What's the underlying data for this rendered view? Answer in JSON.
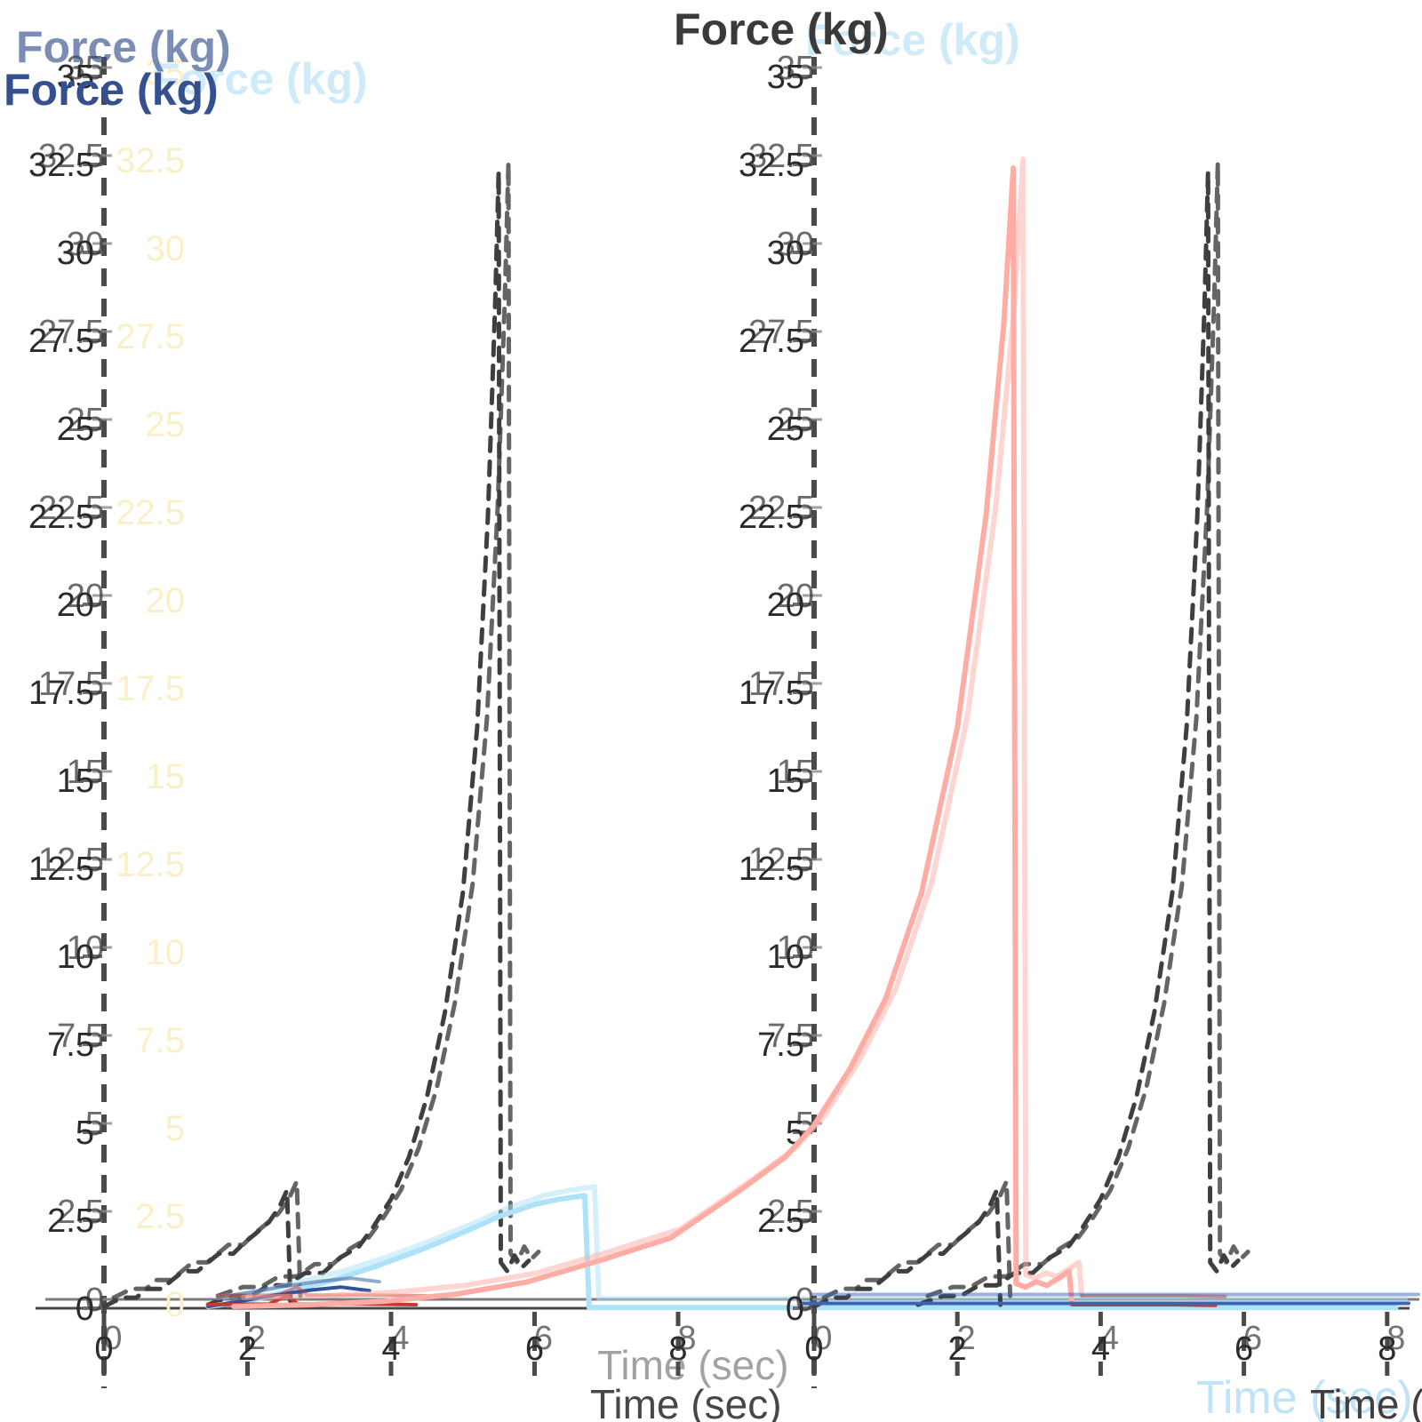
{
  "figure": {
    "background": "#ffffff",
    "ghosting_note": "double-exposed frame",
    "colors": {
      "dashed_target": "#3f3f3f",
      "cyan_trace": "#aee2f8",
      "salmon_trace": "#ffaca4",
      "navy_trace": "#2c53a0",
      "dark_red_trace": "#c23a31",
      "blue_trace": "#3c64b4",
      "axis_line": "#4a4a4a",
      "tick_text": "#2b2b2b",
      "title_blue": "#35508f",
      "title_dark": "#3a3a3a",
      "ghost_yellow": "#faf0c8",
      "ghost_blue": "#cfeaf8",
      "xlabel_dark": "#474747"
    }
  },
  "chart_data": [
    {
      "type": "line",
      "panel": "left",
      "y_axis_title": "Force (kg)",
      "x_axis_title": "Time (sec)",
      "xlim": [
        0,
        9.15
      ],
      "ylim": [
        0,
        35.2
      ],
      "grid": "dashed zero-line and tick stubs, no fill grid",
      "legend": "none",
      "xticks": {
        "values": [
          0,
          2,
          4,
          6,
          8
        ],
        "labels": [
          "0",
          "2",
          "4",
          "6",
          "8"
        ]
      },
      "yticks": {
        "values": [
          0,
          2.5,
          5,
          7.5,
          10,
          12.5,
          15,
          17.5,
          20,
          22.5,
          25,
          27.5,
          30,
          32.5,
          35
        ],
        "labels": [
          "0",
          "2.5",
          "5",
          "7.5",
          "10",
          "12.5",
          "15",
          "17.5",
          "20",
          "22.5",
          "25",
          "27.5",
          "30",
          "32.5",
          "35"
        ]
      },
      "series": [
        {
          "name": "target-ramp-short",
          "color": "#3f3f3f",
          "dash": true,
          "width": 5,
          "points": [
            [
              0,
              0.05
            ],
            [
              0.25,
              0.3
            ],
            [
              0.45,
              0.3
            ],
            [
              0.6,
              0.55
            ],
            [
              0.8,
              0.55
            ],
            [
              0.95,
              0.8
            ],
            [
              1.1,
              1.05
            ],
            [
              1.3,
              1.05
            ],
            [
              1.45,
              1.3
            ],
            [
              1.6,
              1.55
            ],
            [
              1.8,
              1.55
            ],
            [
              1.95,
              1.85
            ],
            [
              2.1,
              2.1
            ],
            [
              2.3,
              2.45
            ],
            [
              2.45,
              2.9
            ],
            [
              2.55,
              3.35
            ],
            [
              2.6,
              0.1
            ]
          ]
        },
        {
          "name": "target-ramp-tall",
          "color": "#3f3f3f",
          "dash": true,
          "width": 5,
          "points": [
            [
              1.45,
              0.1
            ],
            [
              1.8,
              0.35
            ],
            [
              2.05,
              0.35
            ],
            [
              2.3,
              0.65
            ],
            [
              2.55,
              0.65
            ],
            [
              2.8,
              1.0
            ],
            [
              3.05,
              1.0
            ],
            [
              3.3,
              1.45
            ],
            [
              3.55,
              1.75
            ],
            [
              3.75,
              2.3
            ],
            [
              4.0,
              3.1
            ],
            [
              4.25,
              4.3
            ],
            [
              4.5,
              6.0
            ],
            [
              4.75,
              8.4
            ],
            [
              5.0,
              11.8
            ],
            [
              5.2,
              16.5
            ],
            [
              5.35,
              22.5
            ],
            [
              5.45,
              28.5
            ],
            [
              5.5,
              32.3
            ],
            [
              5.53,
              1.3
            ],
            [
              5.62,
              1.05
            ],
            [
              5.72,
              1.5
            ],
            [
              5.82,
              1.15
            ],
            [
              5.92,
              1.35
            ]
          ]
        },
        {
          "name": "cyan-force-trace",
          "color": "#aee2f8",
          "dash": false,
          "width": 6,
          "points": [
            [
              1.45,
              0.05
            ],
            [
              2.0,
              0.2
            ],
            [
              2.6,
              0.5
            ],
            [
              3.2,
              0.8
            ],
            [
              3.8,
              1.2
            ],
            [
              4.4,
              1.65
            ],
            [
              5.0,
              2.15
            ],
            [
              5.5,
              2.6
            ],
            [
              6.0,
              2.95
            ],
            [
              6.35,
              3.1
            ],
            [
              6.7,
              3.2
            ],
            [
              6.76,
              0.02
            ],
            [
              18,
              0.02
            ]
          ]
        },
        {
          "name": "navy-trace",
          "color": "#2c53a0",
          "dash": false,
          "width": 4,
          "points": [
            [
              1.45,
              0.05
            ],
            [
              1.9,
              0.2
            ],
            [
              2.4,
              0.38
            ],
            [
              2.9,
              0.52
            ],
            [
              3.3,
              0.6
            ],
            [
              3.7,
              0.5
            ]
          ]
        },
        {
          "name": "dark-red-trace",
          "color": "#c23a31",
          "dash": false,
          "width": 4,
          "points": [
            [
              1.45,
              0.1
            ],
            [
              2.3,
              0.12
            ],
            [
              2.55,
              0.35
            ],
            [
              2.7,
              0.12
            ],
            [
              3.6,
              0.12
            ],
            [
              4.35,
              0.1
            ]
          ]
        }
      ]
    },
    {
      "type": "line",
      "panel": "right",
      "y_axis_title": "Force (kg)",
      "x_axis_title": "Time (sec)",
      "xlim": [
        0,
        8.3
      ],
      "ylim": [
        0,
        35.2
      ],
      "grid": "dashed zero-line and tick stubs, no fill grid",
      "legend": "none",
      "xticks": {
        "values": [
          0,
          2,
          4,
          6,
          8
        ],
        "labels": [
          "0",
          "2",
          "4",
          "6",
          "8"
        ]
      },
      "yticks": {
        "values": [
          0,
          2.5,
          5,
          7.5,
          10,
          12.5,
          15,
          17.5,
          20,
          22.5,
          25,
          27.5,
          30,
          32.5,
          35
        ],
        "labels": [
          "0",
          "2.5",
          "5",
          "7.5",
          "10",
          "12.5",
          "15",
          "17.5",
          "20",
          "22.5",
          "25",
          "27.5",
          "30",
          "32.5",
          "35"
        ]
      },
      "series": [
        {
          "name": "target-ramp-short",
          "color": "#3f3f3f",
          "dash": true,
          "width": 5,
          "points": [
            [
              0,
              0.05
            ],
            [
              0.25,
              0.3
            ],
            [
              0.45,
              0.3
            ],
            [
              0.6,
              0.55
            ],
            [
              0.8,
              0.55
            ],
            [
              0.95,
              0.8
            ],
            [
              1.1,
              1.05
            ],
            [
              1.3,
              1.05
            ],
            [
              1.45,
              1.3
            ],
            [
              1.6,
              1.55
            ],
            [
              1.8,
              1.55
            ],
            [
              1.95,
              1.85
            ],
            [
              2.1,
              2.1
            ],
            [
              2.3,
              2.45
            ],
            [
              2.45,
              2.9
            ],
            [
              2.55,
              3.35
            ],
            [
              2.6,
              0.1
            ]
          ]
        },
        {
          "name": "target-ramp-tall",
          "color": "#3f3f3f",
          "dash": true,
          "width": 5,
          "points": [
            [
              1.45,
              0.1
            ],
            [
              1.8,
              0.35
            ],
            [
              2.05,
              0.35
            ],
            [
              2.3,
              0.65
            ],
            [
              2.55,
              0.65
            ],
            [
              2.8,
              1.0
            ],
            [
              3.05,
              1.0
            ],
            [
              3.3,
              1.45
            ],
            [
              3.55,
              1.75
            ],
            [
              3.75,
              2.3
            ],
            [
              4.0,
              3.1
            ],
            [
              4.25,
              4.3
            ],
            [
              4.5,
              6.0
            ],
            [
              4.75,
              8.4
            ],
            [
              5.0,
              11.8
            ],
            [
              5.2,
              16.5
            ],
            [
              5.35,
              22.5
            ],
            [
              5.45,
              28.5
            ],
            [
              5.5,
              32.3
            ],
            [
              5.53,
              1.3
            ],
            [
              5.62,
              1.05
            ],
            [
              5.72,
              1.5
            ],
            [
              5.82,
              1.15
            ],
            [
              5.92,
              1.35
            ]
          ]
        },
        {
          "name": "salmon-force-trace",
          "color": "#ffaca4",
          "dash": false,
          "width": 6,
          "points": [
            [
              -8.1,
              0.05
            ],
            [
              -7,
              0.1
            ],
            [
              -6,
              0.2
            ],
            [
              -5,
              0.4
            ],
            [
              -4,
              0.75
            ],
            [
              -3,
              1.35
            ],
            [
              -2,
              2.0
            ],
            [
              -1,
              3.4
            ],
            [
              -0.4,
              4.3
            ],
            [
              0,
              5.2
            ],
            [
              0.5,
              6.8
            ],
            [
              1.0,
              8.8
            ],
            [
              1.5,
              11.8
            ],
            [
              2.0,
              16.5
            ],
            [
              2.4,
              22.5
            ],
            [
              2.65,
              28.0
            ],
            [
              2.78,
              32.4
            ],
            [
              2.82,
              0.7
            ],
            [
              2.95,
              0.6
            ],
            [
              3.1,
              0.75
            ],
            [
              3.25,
              0.65
            ],
            [
              3.45,
              0.9
            ],
            [
              3.56,
              1.05
            ],
            [
              3.6,
              0.12
            ]
          ]
        },
        {
          "name": "dark-red-trace",
          "color": "#c23a31",
          "dash": false,
          "width": 4,
          "points": [
            [
              3.6,
              0.1
            ],
            [
              5.0,
              0.1
            ],
            [
              5.6,
              0.08
            ]
          ]
        },
        {
          "name": "blue-trace",
          "color": "#3c64b4",
          "dash": false,
          "width": 4,
          "points": [
            [
              -0.15,
              0.14
            ],
            [
              8.3,
              0.14
            ]
          ]
        }
      ]
    }
  ]
}
